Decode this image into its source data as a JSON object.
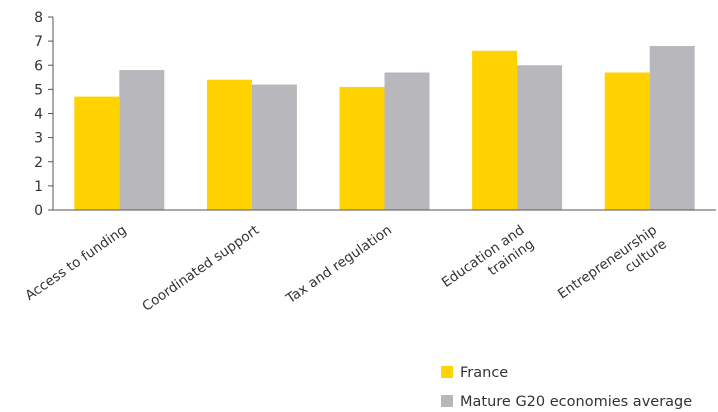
{
  "chart_data": {
    "type": "bar",
    "categories": [
      [
        "Access to funding"
      ],
      [
        "Coordinated support"
      ],
      [
        "Tax and regulation"
      ],
      [
        "Education and",
        "training"
      ],
      [
        "Entrepreneurship",
        "culture"
      ]
    ],
    "series": [
      {
        "name": "France",
        "color": "#FFD200",
        "values": [
          4.7,
          5.4,
          5.1,
          6.6,
          5.7
        ]
      },
      {
        "name": "Mature G20 economies average",
        "color": "#B8B8BC",
        "values": [
          5.8,
          5.2,
          5.7,
          6.0,
          6.8
        ]
      }
    ],
    "ylim": [
      0,
      8
    ],
    "yticks": [
      0,
      1,
      2,
      3,
      4,
      5,
      6,
      7,
      8
    ],
    "grid": false,
    "legend_position": "bottom-right",
    "title": "",
    "xlabel": "",
    "ylabel": ""
  }
}
